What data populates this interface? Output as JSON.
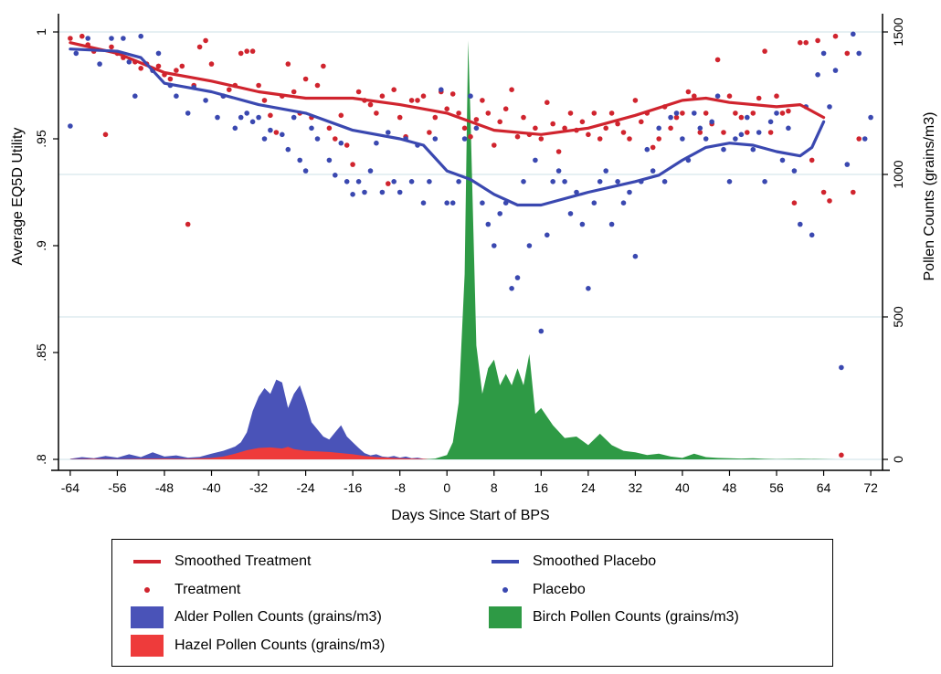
{
  "chart_data": {
    "type": "line",
    "xlabel": "Days Since Start of BPS",
    "ylabel": "Average EQ5D Utility",
    "y2label": "Pollen Counts (grains/m3)",
    "xlim": [
      -66,
      74
    ],
    "ylim": [
      0.8,
      1.0
    ],
    "y2lim": [
      0,
      1500
    ],
    "x_ticks": [
      "-64",
      "-56",
      "-48",
      "-40",
      "-32",
      "-24",
      "-16",
      "-8",
      "0",
      "8",
      "16",
      "24",
      "32",
      "40",
      "48",
      "56",
      "64",
      "72"
    ],
    "y_ticks": [
      ".8",
      ".85",
      ".9",
      ".95",
      "1"
    ],
    "y2_ticks": [
      "0",
      "500",
      "1000",
      "1500"
    ],
    "grid": "horizontal lines at right-axis ticks",
    "legend_position": "bottom",
    "colors": {
      "treatment": "#d0242e",
      "placebo": "#3a48b0",
      "alder": "#4a53b8",
      "hazel": "#ee3b3b",
      "birch": "#2e9a45",
      "grid": "#d6e6ec"
    },
    "series": [
      {
        "name": "Smoothed Treatment",
        "kind": "line",
        "x": [
          -64,
          -56,
          -48,
          -40,
          -32,
          -24,
          -16,
          -8,
          0,
          8,
          16,
          24,
          32,
          40,
          44,
          48,
          56,
          60,
          64
        ],
        "y": [
          0.995,
          0.99,
          0.981,
          0.977,
          0.972,
          0.969,
          0.969,
          0.966,
          0.962,
          0.954,
          0.952,
          0.955,
          0.961,
          0.968,
          0.969,
          0.967,
          0.965,
          0.966,
          0.96
        ]
      },
      {
        "name": "Smoothed Placebo",
        "kind": "line",
        "x": [
          -64,
          -56,
          -52,
          -48,
          -44,
          -40,
          -32,
          -24,
          -16,
          -8,
          -4,
          0,
          4,
          8,
          12,
          16,
          24,
          32,
          36,
          40,
          44,
          48,
          52,
          56,
          60,
          62,
          64
        ],
        "y": [
          0.992,
          0.991,
          0.988,
          0.976,
          0.974,
          0.972,
          0.966,
          0.962,
          0.954,
          0.95,
          0.947,
          0.935,
          0.931,
          0.924,
          0.919,
          0.919,
          0.925,
          0.93,
          0.933,
          0.94,
          0.946,
          0.948,
          0.947,
          0.944,
          0.942,
          0.946,
          0.958
        ]
      },
      {
        "name": "Treatment",
        "kind": "points",
        "x": [
          -64,
          -62,
          -61,
          -60,
          -58,
          -57,
          -56,
          -55,
          -53,
          -52,
          -51,
          -50,
          -49,
          -48,
          -47,
          -46,
          -45,
          -44,
          -43,
          -42,
          -41,
          -40,
          -38,
          -37,
          -36,
          -35,
          -34,
          -33,
          -32,
          -31,
          -30,
          -29,
          -28,
          -27,
          -26,
          -25,
          -24,
          -23,
          -22,
          -21,
          -20,
          -19,
          -18,
          -17,
          -16,
          -15,
          -14,
          -13,
          -12,
          -11,
          -10,
          -9,
          -8,
          -7,
          -6,
          -5,
          -4,
          -3,
          -2,
          -1,
          0,
          1,
          2,
          3,
          4,
          5,
          6,
          7,
          8,
          9,
          10,
          11,
          12,
          13,
          14,
          15,
          16,
          17,
          18,
          19,
          20,
          21,
          22,
          23,
          24,
          25,
          26,
          27,
          28,
          29,
          30,
          31,
          32,
          33,
          34,
          35,
          36,
          37,
          38,
          39,
          40,
          41,
          42,
          43,
          44,
          45,
          46,
          47,
          48,
          49,
          50,
          51,
          52,
          53,
          54,
          55,
          56,
          57,
          58,
          59,
          60,
          61,
          62,
          63,
          64,
          65,
          66,
          67,
          68,
          69,
          70
        ],
        "y": [
          0.997,
          0.998,
          0.994,
          0.991,
          0.952,
          0.993,
          0.99,
          0.988,
          0.986,
          0.983,
          0.985,
          0.982,
          0.984,
          0.98,
          0.978,
          0.982,
          0.984,
          0.91,
          0.975,
          0.993,
          0.996,
          0.985,
          0.97,
          0.973,
          0.975,
          0.99,
          0.991,
          0.991,
          0.975,
          0.968,
          0.961,
          0.953,
          0.97,
          0.985,
          0.972,
          0.962,
          0.978,
          0.96,
          0.975,
          0.984,
          0.955,
          0.95,
          0.961,
          0.947,
          0.938,
          0.972,
          0.968,
          0.966,
          0.962,
          0.97,
          0.929,
          0.973,
          0.96,
          0.951,
          0.968,
          0.968,
          0.97,
          0.953,
          0.96,
          0.972,
          0.964,
          0.971,
          0.962,
          0.955,
          0.951,
          0.959,
          0.968,
          0.962,
          0.947,
          0.958,
          0.964,
          0.973,
          0.951,
          0.96,
          0.952,
          0.955,
          0.95,
          0.967,
          0.957,
          0.944,
          0.955,
          0.962,
          0.954,
          0.958,
          0.952,
          0.962,
          0.95,
          0.955,
          0.962,
          0.957,
          0.953,
          0.95,
          0.968,
          0.958,
          0.962,
          0.946,
          0.95,
          0.965,
          0.955,
          0.96,
          0.962,
          0.972,
          0.97,
          0.953,
          0.962,
          0.957,
          0.987,
          0.953,
          0.97,
          0.962,
          0.96,
          0.953,
          0.962,
          0.969,
          0.991,
          0.953,
          0.97,
          0.962,
          0.963,
          0.92,
          0.995,
          0.995,
          0.94,
          0.996,
          0.925,
          0.921,
          0.998,
          0.802,
          0.99,
          0.925,
          0.95
        ]
      },
      {
        "name": "Placebo",
        "kind": "points",
        "x": [
          -64,
          -63,
          -61,
          -59,
          -57,
          -55,
          -54,
          -53,
          -52,
          -50,
          -49,
          -47,
          -46,
          -44,
          -43,
          -41,
          -39,
          -38,
          -36,
          -35,
          -34,
          -33,
          -32,
          -31,
          -30,
          -28,
          -27,
          -26,
          -25,
          -24,
          -23,
          -22,
          -20,
          -19,
          -18,
          -17,
          -16,
          -15,
          -14,
          -13,
          -12,
          -11,
          -10,
          -9,
          -8,
          -7,
          -6,
          -5,
          -4,
          -3,
          -2,
          -1,
          0,
          1,
          2,
          3,
          4,
          5,
          6,
          7,
          8,
          9,
          10,
          11,
          12,
          13,
          14,
          15,
          16,
          17,
          18,
          19,
          20,
          21,
          22,
          23,
          24,
          25,
          26,
          27,
          28,
          29,
          30,
          31,
          32,
          33,
          34,
          35,
          36,
          37,
          38,
          39,
          40,
          41,
          42,
          43,
          44,
          45,
          46,
          47,
          48,
          49,
          50,
          51,
          52,
          53,
          54,
          55,
          56,
          57,
          58,
          59,
          60,
          61,
          62,
          63,
          64,
          65,
          66,
          67,
          68,
          69,
          70,
          71,
          72
        ],
        "y": [
          0.956,
          0.99,
          0.997,
          0.985,
          0.997,
          0.997,
          0.986,
          0.97,
          0.998,
          0.982,
          0.99,
          0.975,
          0.97,
          0.962,
          0.974,
          0.968,
          0.96,
          0.97,
          0.955,
          0.96,
          0.962,
          0.958,
          0.96,
          0.95,
          0.954,
          0.952,
          0.945,
          0.96,
          0.94,
          0.935,
          0.955,
          0.95,
          0.94,
          0.933,
          0.948,
          0.93,
          0.924,
          0.93,
          0.925,
          0.935,
          0.948,
          0.925,
          0.953,
          0.93,
          0.925,
          0.95,
          0.93,
          0.947,
          0.92,
          0.93,
          0.95,
          0.973,
          0.92,
          0.92,
          0.93,
          0.95,
          0.97,
          0.955,
          0.92,
          0.91,
          0.9,
          0.915,
          0.92,
          0.88,
          0.885,
          0.93,
          0.9,
          0.94,
          0.86,
          0.905,
          0.93,
          0.935,
          0.93,
          0.915,
          0.925,
          0.91,
          0.88,
          0.92,
          0.93,
          0.935,
          0.91,
          0.93,
          0.92,
          0.925,
          0.895,
          0.93,
          0.945,
          0.935,
          0.955,
          0.93,
          0.96,
          0.962,
          0.95,
          0.94,
          0.962,
          0.955,
          0.95,
          0.958,
          0.97,
          0.945,
          0.93,
          0.95,
          0.952,
          0.96,
          0.945,
          0.953,
          0.93,
          0.958,
          0.962,
          0.94,
          0.955,
          0.935,
          0.91,
          0.965,
          0.905,
          0.98,
          0.99,
          0.965,
          0.982,
          0.843,
          0.938,
          0.999,
          0.99,
          0.95,
          0.96
        ]
      },
      {
        "name": "Alder Pollen Counts (grains/m3)",
        "kind": "area",
        "axis": "right",
        "x": [
          -64,
          -62,
          -60,
          -58,
          -56,
          -54,
          -52,
          -50,
          -48,
          -46,
          -44,
          -42,
          -40,
          -38,
          -36,
          -35,
          -34,
          -33,
          -32,
          -31,
          -30,
          -29,
          -28,
          -27,
          -26,
          -25,
          -24,
          -23,
          -22,
          -21,
          -20,
          -19,
          -18,
          -17,
          -16,
          -15,
          -14,
          -13,
          -12,
          -11,
          -10,
          -9,
          -8,
          -7,
          -6,
          -5,
          -4,
          -2,
          0
        ],
        "y": [
          2,
          8,
          4,
          12,
          6,
          18,
          8,
          25,
          10,
          14,
          6,
          9,
          20,
          30,
          45,
          60,
          95,
          170,
          220,
          250,
          230,
          280,
          270,
          180,
          230,
          260,
          200,
          130,
          105,
          80,
          70,
          95,
          120,
          80,
          60,
          40,
          22,
          14,
          18,
          10,
          8,
          12,
          6,
          10,
          4,
          6,
          2,
          1,
          0
        ]
      },
      {
        "name": "Hazel Pollen Counts (grains/m3)",
        "kind": "area",
        "axis": "right",
        "x": [
          -64,
          -60,
          -56,
          -52,
          -48,
          -44,
          -40,
          -38,
          -36,
          -34,
          -32,
          -30,
          -28,
          -27,
          -26,
          -24,
          -22,
          -20,
          -18,
          -16,
          -14,
          -12,
          -10,
          -8,
          -6,
          -4,
          -2,
          0
        ],
        "y": [
          1,
          2,
          1,
          2,
          3,
          2,
          5,
          10,
          20,
          32,
          40,
          42,
          38,
          44,
          36,
          30,
          28,
          26,
          22,
          18,
          12,
          8,
          6,
          4,
          3,
          2,
          1,
          0
        ]
      },
      {
        "name": "Birch Pollen Counts (grains/m3)",
        "kind": "area",
        "axis": "right",
        "x": [
          -4,
          -2,
          0,
          1,
          2,
          3,
          3.6,
          4,
          5,
          6,
          7,
          8,
          9,
          10,
          11,
          12,
          13,
          14,
          15,
          16,
          18,
          20,
          22,
          24,
          26,
          28,
          30,
          32,
          34,
          36,
          38,
          40,
          42,
          44,
          46,
          48,
          50,
          52,
          54,
          56,
          60,
          64,
          66
        ],
        "y": [
          0,
          3,
          15,
          60,
          200,
          650,
          1470,
          1200,
          400,
          230,
          320,
          350,
          260,
          300,
          260,
          320,
          260,
          370,
          160,
          180,
          120,
          75,
          80,
          50,
          90,
          50,
          30,
          25,
          15,
          20,
          10,
          5,
          20,
          8,
          5,
          4,
          3,
          4,
          2,
          1,
          2,
          1,
          0
        ]
      }
    ]
  }
}
